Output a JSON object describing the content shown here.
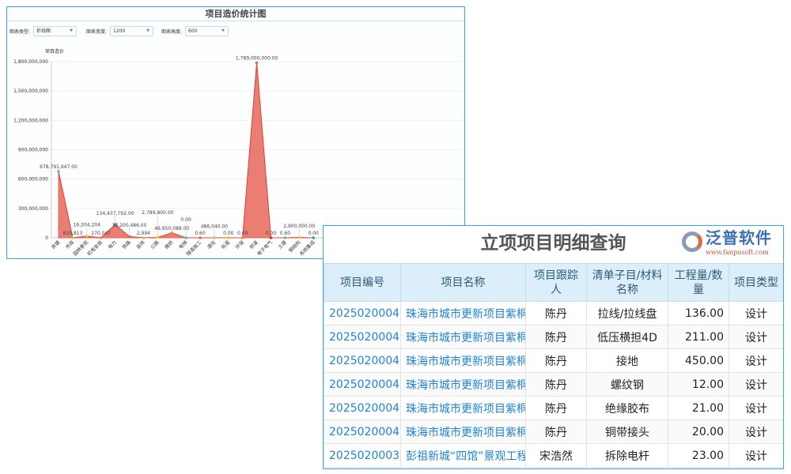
{
  "chart_panel": {
    "title": "项目造价统计图",
    "controls": [
      {
        "label": "图表类型:",
        "value": "折线图"
      },
      {
        "label": "图表宽度:",
        "value": "1200"
      },
      {
        "label": "图表高度:",
        "value": "600"
      }
    ]
  },
  "chart_data": {
    "type": "area",
    "title": "项目造价统计图",
    "ylabel": "项目造价",
    "xlabel": "",
    "ylim": [
      0,
      1800000000
    ],
    "yticks": [
      "0",
      "300,000,000",
      "600,000,000",
      "900,000,000",
      "1,200,000,000",
      "1,500,000,000",
      "1,800,000,000"
    ],
    "grid": true,
    "color": "#e8675a",
    "categories": [
      "房建",
      "市政",
      "园林景观",
      "机电安装",
      "电力",
      "铁路",
      "装饰",
      "公路",
      "路桥",
      "电梯",
      "隧道施工",
      "通信",
      "轨道",
      "环保",
      "桥梁",
      "电子电气",
      "土建",
      "钢结构",
      "系统集成"
    ],
    "values": [
      678791947,
      835813,
      16204204,
      270047,
      134437792,
      13200486,
      2994,
      2789800,
      49950088,
      0,
      0.6,
      486040,
      0,
      0,
      1789000000,
      0,
      0.6,
      2900000,
      0
    ],
    "data_labels": [
      "678,791,947.00",
      "835,813",
      "16,204,204",
      "270,047",
      "134,437,792.00",
      "13,200,486.00",
      "2,994",
      "2,789,800.00",
      "49,950,088.00",
      "0.00",
      "0.60",
      "486,040.00",
      "0.00",
      "0.00",
      "1,789,000,000.00",
      "0.00",
      "0.60",
      "2,900,000.00",
      "0.00"
    ],
    "marker_colors": [
      "#3ec6d8",
      "#a6d84a",
      "#f5c033",
      "#f58a3c",
      "#2a8a9a",
      "#e8675a",
      "#a6d84a",
      "#f5c033",
      "#f58a3c",
      "#3ec6d8",
      "#e8675a",
      "#a6d84a",
      "#f5c033",
      "#f58a3c",
      "#e8675a",
      "#c0392b",
      "#7fa0b5",
      "#f5c033",
      "#26a69a"
    ]
  },
  "table_panel": {
    "title": "立项项目明细查询",
    "columns": [
      "项目编号",
      "项目名称",
      "项目跟踪人",
      "清单子目/材料名称",
      "工程量/数量",
      "项目类型"
    ],
    "rows": [
      [
        "2025020004",
        "珠海市城市更新项目紫桐",
        "陈丹",
        "拉线/拉线盘",
        "136.00",
        "设计"
      ],
      [
        "2025020004",
        "珠海市城市更新项目紫桐",
        "陈丹",
        "低压横担4D",
        "211.00",
        "设计"
      ],
      [
        "2025020004",
        "珠海市城市更新项目紫桐",
        "陈丹",
        "接地",
        "450.00",
        "设计"
      ],
      [
        "2025020004",
        "珠海市城市更新项目紫桐",
        "陈丹",
        "螺纹钢",
        "12.00",
        "设计"
      ],
      [
        "2025020004",
        "珠海市城市更新项目紫桐",
        "陈丹",
        "绝缘胶布",
        "21.00",
        "设计"
      ],
      [
        "2025020004",
        "珠海市城市更新项目紫桐",
        "陈丹",
        "铜带接头",
        "20.00",
        "设计"
      ],
      [
        "2025020003",
        "彭祖新城“四馆”景观工程",
        "宋浩然",
        "拆除电杆",
        "23.00",
        "设计"
      ]
    ]
  },
  "watermark": {
    "brand": "泛普软件",
    "url": "www.fanpusoft.com"
  }
}
